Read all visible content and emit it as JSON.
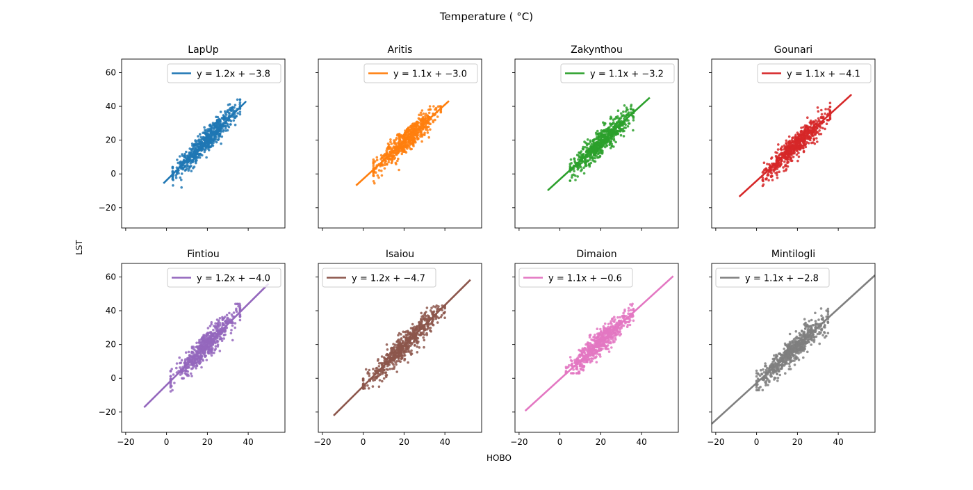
{
  "figure": {
    "title": "Temperature ( °C)",
    "xlabel": "HOBO",
    "ylabel": "LST"
  },
  "chart_data": [
    {
      "type": "scatter",
      "title": "LapUp",
      "color": "#1f77b4",
      "legend": {
        "location": "upper right",
        "label_prefix": "y = 1.2x + ",
        "label_suffix": "−3.8"
      },
      "fit": {
        "slope": 1.2,
        "intercept": -3.8,
        "x_range": [
          -1.5,
          39
        ]
      },
      "scatter_cloud": {
        "x_range": [
          3,
          36
        ],
        "y_range": [
          -8,
          44
        ],
        "count": 600
      },
      "xlim": [
        -22,
        58
      ],
      "ylim": [
        -32,
        68
      ],
      "xticks": [
        -20,
        0,
        20,
        40
      ],
      "yticks": [
        -20,
        0,
        20,
        40,
        60
      ]
    },
    {
      "type": "scatter",
      "title": "Aritis",
      "color": "#ff7f0e",
      "legend": {
        "location": "upper right",
        "label_prefix": "y = 1.1x + ",
        "label_suffix": "−3.0"
      },
      "fit": {
        "slope": 1.1,
        "intercept": -3.0,
        "x_range": [
          -3.5,
          42
        ]
      },
      "scatter_cloud": {
        "x_range": [
          5,
          38
        ],
        "y_range": [
          -6,
          40
        ],
        "count": 600
      },
      "xlim": [
        -22,
        58
      ],
      "ylim": [
        -32,
        68
      ],
      "xticks": [
        -20,
        0,
        20,
        40
      ],
      "yticks": [
        -20,
        0,
        20,
        40,
        60
      ]
    },
    {
      "type": "scatter",
      "title": "Zakynthou",
      "color": "#2ca02c",
      "legend": {
        "location": "upper right",
        "label_prefix": "y = 1.1x + ",
        "label_suffix": "−3.2"
      },
      "fit": {
        "slope": 1.1,
        "intercept": -3.2,
        "x_range": [
          -6,
          44
        ]
      },
      "scatter_cloud": {
        "x_range": [
          5,
          36
        ],
        "y_range": [
          -4,
          43
        ],
        "count": 600
      },
      "xlim": [
        -22,
        58
      ],
      "ylim": [
        -32,
        68
      ],
      "xticks": [
        -20,
        0,
        20,
        40
      ],
      "yticks": [
        -20,
        0,
        20,
        40,
        60
      ]
    },
    {
      "type": "scatter",
      "title": "Gounari",
      "color": "#d62728",
      "legend": {
        "location": "upper right",
        "label_prefix": "y = 1.1x + ",
        "label_suffix": "−4.1"
      },
      "fit": {
        "slope": 1.1,
        "intercept": -4.1,
        "x_range": [
          -8.5,
          46.5
        ]
      },
      "scatter_cloud": {
        "x_range": [
          3,
          36
        ],
        "y_range": [
          -8,
          42
        ],
        "count": 600
      },
      "xlim": [
        -22,
        58
      ],
      "ylim": [
        -32,
        68
      ],
      "xticks": [
        -20,
        0,
        20,
        40
      ],
      "yticks": [
        -20,
        0,
        20,
        40,
        60
      ]
    },
    {
      "type": "scatter",
      "title": "Fintiou",
      "color": "#9467bd",
      "legend": {
        "location": "upper right",
        "label_prefix": "y = 1.2x + ",
        "label_suffix": "−4.0"
      },
      "fit": {
        "slope": 1.2,
        "intercept": -4.0,
        "x_range": [
          -11,
          50
        ]
      },
      "scatter_cloud": {
        "x_range": [
          2,
          36
        ],
        "y_range": [
          -8,
          44
        ],
        "count": 600
      },
      "xlim": [
        -22,
        58
      ],
      "ylim": [
        -32,
        68
      ],
      "xticks": [
        -20,
        0,
        20,
        40
      ],
      "yticks": [
        -20,
        0,
        20,
        40,
        60
      ]
    },
    {
      "type": "scatter",
      "title": "Isaiou",
      "color": "#8c564b",
      "legend": {
        "location": "upper left",
        "label_prefix": "y = 1.2x + ",
        "label_suffix": "−4.7"
      },
      "fit": {
        "slope": 1.2,
        "intercept": -4.7,
        "x_range": [
          -14.5,
          52.5
        ]
      },
      "scatter_cloud": {
        "x_range": [
          0,
          40
        ],
        "y_range": [
          -6,
          43
        ],
        "count": 600
      },
      "xlim": [
        -22,
        58
      ],
      "ylim": [
        -32,
        68
      ],
      "xticks": [
        -20,
        0,
        20,
        40
      ],
      "yticks": [
        -20,
        0,
        20,
        40,
        60
      ]
    },
    {
      "type": "scatter",
      "title": "Dimaion",
      "color": "#e377c2",
      "legend": {
        "location": "upper left",
        "label_prefix": "y = 1.1x + ",
        "label_suffix": "−0.6"
      },
      "fit": {
        "slope": 1.1,
        "intercept": -0.6,
        "x_range": [
          -17,
          55.5
        ]
      },
      "scatter_cloud": {
        "x_range": [
          3,
          36
        ],
        "y_range": [
          3,
          44
        ],
        "count": 600
      },
      "xlim": [
        -22,
        58
      ],
      "ylim": [
        -32,
        68
      ],
      "xticks": [
        -20,
        0,
        20,
        40
      ],
      "yticks": [
        -20,
        0,
        20,
        40,
        60
      ]
    },
    {
      "type": "scatter",
      "title": "Mintilogli",
      "color": "#7f7f7f",
      "legend": {
        "location": "upper left",
        "label_prefix": "y = 1.1x + ",
        "label_suffix": "−2.8"
      },
      "fit": {
        "slope": 1.1,
        "intercept": -2.8,
        "x_range": [
          -22,
          58
        ]
      },
      "scatter_cloud": {
        "x_range": [
          0,
          35
        ],
        "y_range": [
          -7,
          42
        ],
        "count": 600
      },
      "xlim": [
        -22,
        58
      ],
      "ylim": [
        -32,
        68
      ],
      "xticks": [
        -20,
        0,
        20,
        40
      ],
      "yticks": [
        -20,
        0,
        20,
        40,
        60
      ]
    }
  ]
}
